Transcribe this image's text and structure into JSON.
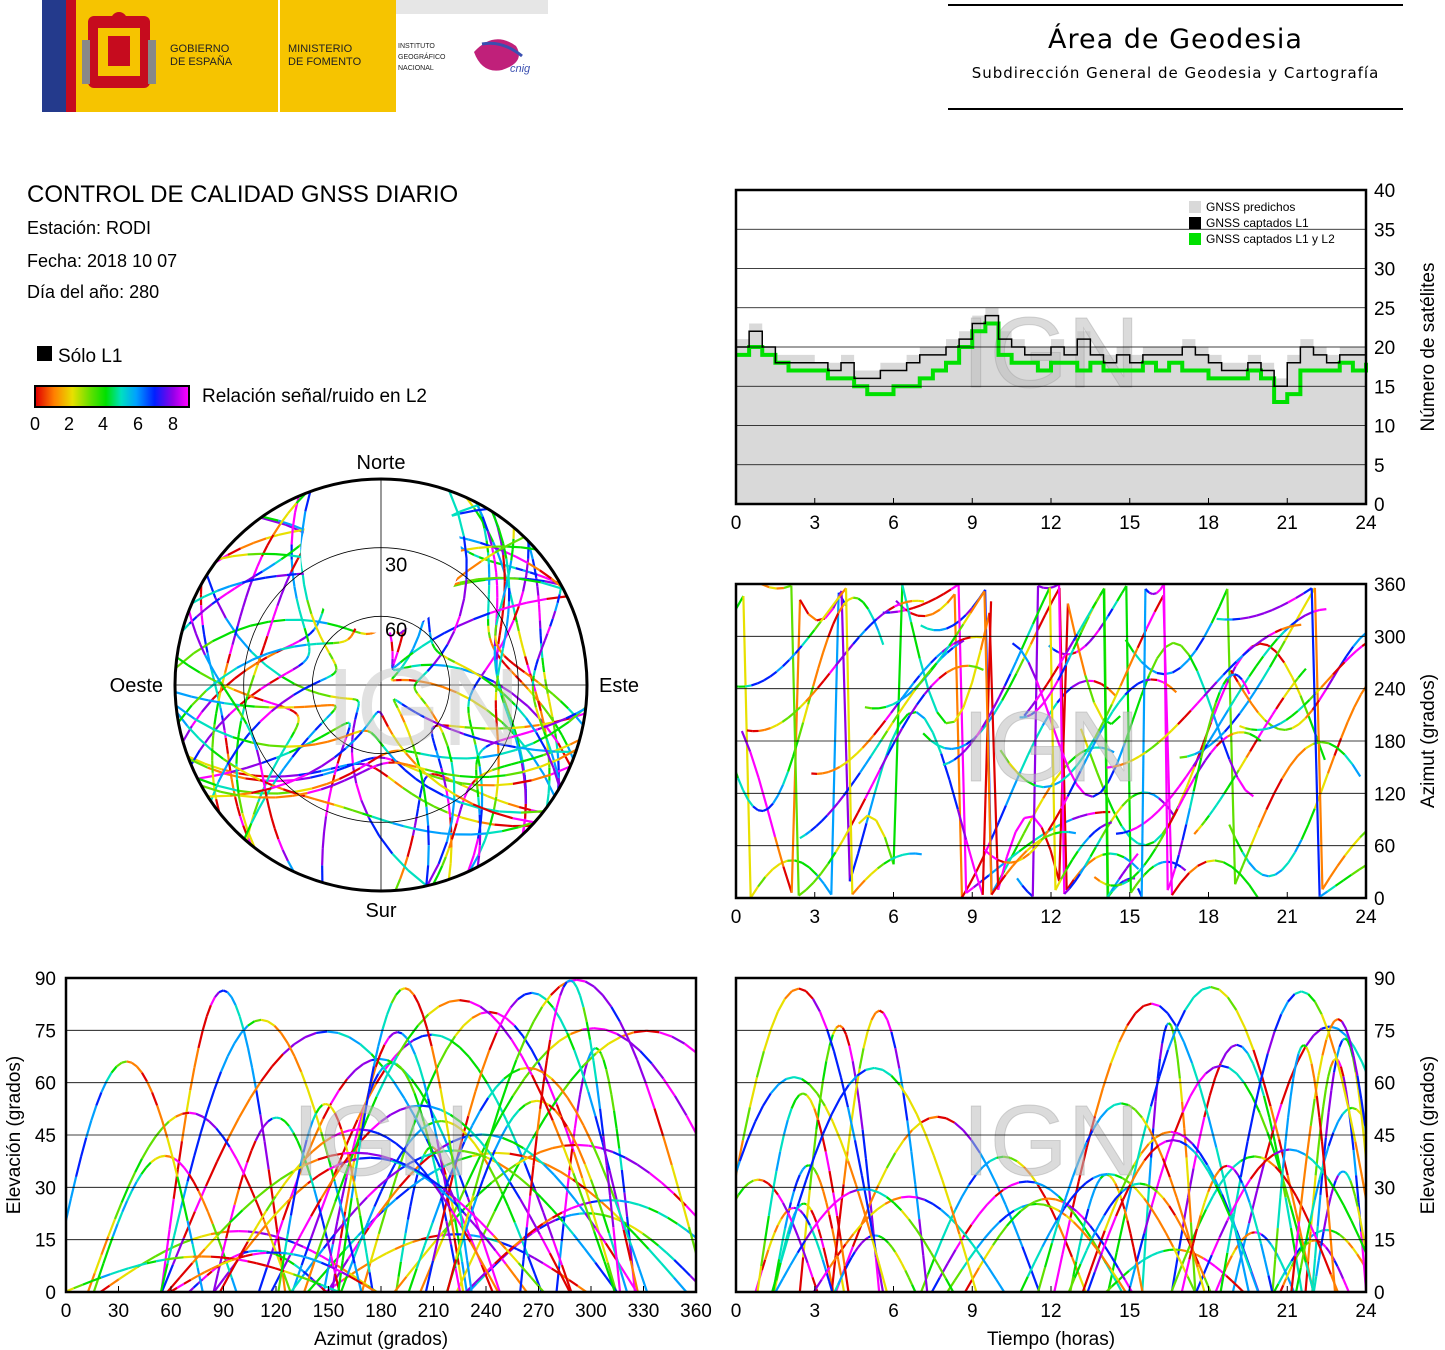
{
  "header": {
    "logo_gov_line1": "GOBIERNO",
    "logo_gov_line2": "DE ESPAÑA",
    "logo_min_line1": "MINISTERIO",
    "logo_min_line2": "DE FOMENTO",
    "logo_ign_line1": "INSTITUTO",
    "logo_ign_line2": "GEOGRÁFICO",
    "logo_ign_line3": "NACIONAL",
    "logo_cnig": "cnig",
    "area_title": "Área de Geodesia",
    "area_subtitle": "Subdirección General de Geodesia y Cartografía"
  },
  "report": {
    "title": "CONTROL DE CALIDAD GNSS DIARIO",
    "station": "Estación: RODI",
    "date": "Fecha: 2018 10 07",
    "doy": "Día del año: 280",
    "legend_l1": "Sólo L1",
    "snr_label": "Relación señal/ruido en L2",
    "snr_ticks": [
      "0",
      "2",
      "4",
      "6",
      "8"
    ]
  },
  "colors": {
    "predicted": "#d9d9d9",
    "l1": "#000000",
    "l1l2": "#00e000",
    "snr_scale": [
      "#e00000",
      "#ff8000",
      "#e8e000",
      "#60e000",
      "#00e000",
      "#00e0c0",
      "#00a0ff",
      "#0020ff",
      "#9000e8",
      "#ff00ff"
    ]
  },
  "watermark": "IGN",
  "chart_data": [
    {
      "type": "line",
      "ylabel": "Número de satélites",
      "xlabel": "",
      "xlim": [
        0,
        24
      ],
      "ylim": [
        0,
        40
      ],
      "xticks": [
        "0",
        "3",
        "6",
        "9",
        "12",
        "15",
        "18",
        "21",
        "24"
      ],
      "yticks": [
        "0",
        "5",
        "10",
        "15",
        "20",
        "25",
        "30",
        "35",
        "40"
      ],
      "legend": [
        "GNSS predichos",
        "GNSS captados L1",
        "GNSS captados L1 y L2"
      ],
      "x": [
        0,
        0.5,
        1,
        1.5,
        2,
        2.5,
        3,
        3.5,
        4,
        4.5,
        5,
        5.5,
        6,
        6.5,
        7,
        7.5,
        8,
        8.5,
        9,
        9.5,
        10,
        10.5,
        11,
        11.5,
        12,
        12.5,
        13,
        13.5,
        14,
        14.5,
        15,
        15.5,
        16,
        16.5,
        17,
        17.5,
        18,
        18.5,
        19,
        19.5,
        20,
        20.5,
        21,
        21.5,
        22,
        22.5,
        23,
        23.5,
        24
      ],
      "series": [
        {
          "name": "GNSS predichos",
          "values": [
            21,
            23,
            20,
            19,
            19,
            19,
            18,
            18,
            19,
            17,
            17,
            18,
            18,
            19,
            20,
            20,
            21,
            22,
            24,
            25,
            22,
            21,
            20,
            20,
            21,
            20,
            22,
            20,
            19,
            20,
            19,
            20,
            20,
            20,
            21,
            20,
            19,
            18,
            18,
            19,
            18,
            16,
            19,
            21,
            20,
            19,
            20,
            20,
            20
          ]
        },
        {
          "name": "GNSS captados L1",
          "values": [
            20,
            22,
            20,
            18,
            18,
            18,
            18,
            17,
            18,
            16,
            16,
            17,
            17,
            18,
            19,
            19,
            20,
            21,
            23,
            24,
            21,
            20,
            19,
            19,
            20,
            19,
            21,
            19,
            18,
            19,
            18,
            19,
            19,
            19,
            20,
            19,
            18,
            17,
            17,
            18,
            17,
            15,
            18,
            20,
            19,
            18,
            19,
            19,
            19
          ]
        },
        {
          "name": "GNSS captados L1 y L2",
          "values": [
            19,
            20,
            19,
            18,
            17,
            17,
            17,
            16,
            16,
            15,
            14,
            14,
            15,
            15,
            16,
            17,
            18,
            20,
            22,
            23,
            19,
            18,
            18,
            17,
            18,
            18,
            17,
            18,
            17,
            17,
            17,
            18,
            17,
            18,
            17,
            17,
            16,
            16,
            16,
            17,
            16,
            13,
            14,
            17,
            17,
            17,
            18,
            17,
            18
          ]
        }
      ]
    },
    {
      "type": "scatter",
      "ylabel": "Azimut (grados)",
      "xlabel": "",
      "xlim": [
        0,
        24
      ],
      "ylim": [
        0,
        360
      ],
      "xticks": [
        "0",
        "3",
        "6",
        "9",
        "12",
        "15",
        "18",
        "21",
        "24"
      ],
      "yticks": [
        "0",
        "60",
        "120",
        "180",
        "240",
        "300",
        "360"
      ]
    },
    {
      "type": "scatter",
      "ylabel": "Elevación (grados)",
      "xlabel": "Azimut (grados)",
      "xlim": [
        0,
        360
      ],
      "ylim": [
        0,
        90
      ],
      "xticks": [
        "0",
        "30",
        "60",
        "90",
        "120",
        "150",
        "180",
        "210",
        "240",
        "270",
        "300",
        "330",
        "360"
      ],
      "yticks": [
        "0",
        "15",
        "30",
        "45",
        "60",
        "75",
        "90"
      ]
    },
    {
      "type": "scatter",
      "ylabel": "Elevación (grados)",
      "xlabel": "Tiempo (horas)",
      "xlim": [
        0,
        24
      ],
      "ylim": [
        0,
        90
      ],
      "xticks": [
        "0",
        "3",
        "6",
        "9",
        "12",
        "15",
        "18",
        "21",
        "24"
      ],
      "yticks": [
        "0",
        "15",
        "30",
        "45",
        "60",
        "75",
        "90"
      ]
    },
    {
      "type": "scatter",
      "ylabel": "",
      "xlabel": "",
      "directions": [
        "Norte",
        "Sur",
        "Este",
        "Oeste"
      ],
      "rings": [
        "30",
        "60"
      ]
    }
  ]
}
